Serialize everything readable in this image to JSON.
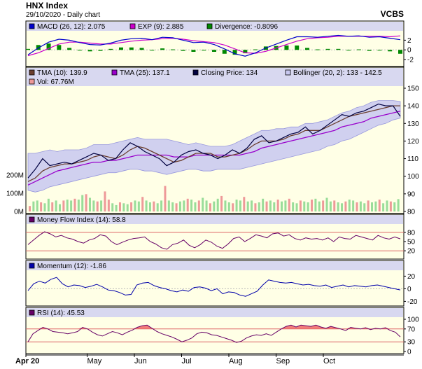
{
  "header": {
    "title": "HNX Index",
    "subtitle": "29/10/2020 - Daily chart",
    "brand": "VCBS"
  },
  "colors": {
    "panel_bg": "#FFFFE6",
    "legend_bg": "#D8D8F0",
    "macd": "#0000CC",
    "exp": "#CC00CC",
    "divergence": "#008800",
    "tma10": "#6B3E2E",
    "tma25": "#9900CC",
    "close": "#000040",
    "bollinger_fill": "#C8C8F0",
    "bollinger_line": "#9999DD",
    "vol_up": "#99DD99",
    "vol_down": "#EE9999",
    "mfi": "#660066",
    "momentum": "#0000AA",
    "rsi": "#660066",
    "rsi_fill": "#EE6666",
    "ref_line": "#DD6666"
  },
  "chart_data": [
    {
      "type": "line",
      "panel": "macd",
      "legend": [
        {
          "name": "MACD (26, 12): 2.075",
          "color": "#0000CC"
        },
        {
          "name": "EXP (9): 2.885",
          "color": "#CC00CC"
        },
        {
          "name": "Divergence: -0.8096",
          "color": "#008800"
        }
      ],
      "yticks": [
        "2",
        "0",
        "-2"
      ],
      "ylim": [
        -3,
        3.5
      ],
      "series": [
        {
          "name": "MACD (26, 12)",
          "values": [
            -1.0,
            0.4,
            1.6,
            2.2,
            2.0,
            1.5,
            1.1,
            1.0,
            1.4,
            2.0,
            2.3,
            2.4,
            2.1,
            2.6,
            2.5,
            2.0,
            1.5,
            1.6,
            1.1,
            0.2,
            -0.8,
            -1.3,
            -0.6,
            0.4,
            1.2,
            2.0,
            2.7,
            2.7,
            2.6,
            2.8,
            3.0,
            2.8,
            2.9,
            2.6,
            2.7,
            2.4,
            2.1
          ]
        },
        {
          "name": "EXP (9)",
          "values": [
            -1.2,
            -0.6,
            0.3,
            1.2,
            1.6,
            1.6,
            1.4,
            1.2,
            1.2,
            1.5,
            1.8,
            2.0,
            2.1,
            2.3,
            2.4,
            2.2,
            1.9,
            1.7,
            1.5,
            1.0,
            0.2,
            -0.6,
            -0.7,
            -0.3,
            0.4,
            1.1,
            1.8,
            2.3,
            2.5,
            2.6,
            2.8,
            2.8,
            2.8,
            2.8,
            2.8,
            2.7,
            2.9
          ]
        }
      ],
      "divergence": [
        0.2,
        1.0,
        1.3,
        1.0,
        0.4,
        -0.1,
        -0.3,
        -0.2,
        0.2,
        0.5,
        0.5,
        0.4,
        0.0,
        0.3,
        0.1,
        -0.2,
        -0.4,
        -0.1,
        -0.4,
        -0.8,
        -1.0,
        -0.7,
        0.1,
        0.7,
        0.8,
        0.9,
        0.9,
        0.4,
        0.1,
        0.2,
        0.2,
        0.0,
        0.1,
        -0.2,
        -0.1,
        -0.3,
        -0.8
      ]
    },
    {
      "type": "line",
      "panel": "price",
      "legend": [
        {
          "name": "TMA (10): 139.9",
          "color": "#6B3E2E"
        },
        {
          "name": "TMA (25): 137.1",
          "color": "#9900CC"
        },
        {
          "name": "Closing Price: 134",
          "color": "#000040"
        },
        {
          "name": "Bollinger (20, 2): 133 - 142.5",
          "color": "#C8C8F0"
        },
        {
          "name": "Vol: 67.76M",
          "color": "#EE9999"
        }
      ],
      "yticks": [
        "150",
        "140",
        "130",
        "120",
        "110",
        "100",
        "90",
        "80"
      ],
      "ylim": [
        80,
        150
      ],
      "vol_ticks": [
        "200M",
        "100M",
        "0M"
      ],
      "vol_max": 300,
      "series": [
        {
          "name": "Closing Price",
          "values": [
            99,
            104,
            110,
            106,
            107,
            108,
            107,
            109,
            111,
            113,
            112,
            109,
            110,
            115,
            119,
            117,
            114,
            112,
            110,
            106,
            108,
            112,
            114,
            115,
            113,
            112,
            110,
            112,
            115,
            113,
            116,
            121,
            123,
            119,
            120,
            122,
            124,
            125,
            128,
            124,
            126,
            129,
            132,
            135,
            134,
            136,
            137,
            139,
            141,
            140,
            140,
            134
          ]
        },
        {
          "name": "TMA (10)",
          "values": [
            97,
            99,
            103,
            105,
            106,
            107,
            107,
            108,
            109,
            111,
            112,
            111,
            110,
            112,
            115,
            117,
            116,
            114,
            112,
            110,
            108,
            109,
            111,
            113,
            113,
            113,
            111,
            111,
            112,
            113,
            115,
            118,
            120,
            120,
            120,
            121,
            123,
            124,
            126,
            126,
            126,
            128,
            130,
            132,
            134,
            135,
            136,
            137,
            138,
            139,
            140,
            140
          ]
        },
        {
          "name": "TMA (25)",
          "values": [
            95,
            97,
            99,
            101,
            103,
            104,
            105,
            106,
            107,
            108,
            108,
            109,
            109,
            110,
            111,
            112,
            112,
            112,
            112,
            112,
            111,
            111,
            111,
            112,
            112,
            112,
            112,
            112,
            112,
            112,
            113,
            114,
            116,
            117,
            118,
            119,
            120,
            121,
            122,
            123,
            124,
            125,
            126,
            128,
            129,
            130,
            131,
            133,
            134,
            135,
            136,
            137
          ]
        },
        {
          "name": "Bollinger upper",
          "values": [
            113,
            113,
            114,
            115,
            114,
            115,
            115,
            115,
            116,
            118,
            118,
            118,
            119,
            120,
            121,
            122,
            121,
            121,
            121,
            121,
            120,
            119,
            118,
            119,
            118,
            117,
            117,
            117,
            118,
            120,
            122,
            124,
            126,
            126,
            127,
            127,
            128,
            128,
            130,
            130,
            131,
            132,
            134,
            136,
            137,
            139,
            140,
            142,
            143,
            143,
            143,
            142.5
          ]
        },
        {
          "name": "Bollinger lower",
          "values": [
            92,
            91,
            92,
            94,
            95,
            96,
            97,
            98,
            99,
            100,
            101,
            102,
            102,
            103,
            104,
            104,
            103,
            103,
            102,
            101,
            102,
            103,
            104,
            104,
            103,
            103,
            104,
            104,
            104,
            104,
            105,
            106,
            107,
            108,
            109,
            110,
            111,
            112,
            113,
            114,
            115,
            117,
            118,
            120,
            121,
            123,
            125,
            127,
            129,
            130,
            132,
            133
          ]
        }
      ],
      "volume": [
        30,
        55,
        60,
        50,
        45,
        70,
        50,
        60,
        40,
        60,
        65,
        60,
        70,
        65,
        90,
        95,
        75,
        60,
        55,
        60,
        110,
        65,
        45,
        35,
        50,
        45,
        40,
        50,
        60,
        55,
        80,
        60,
        50,
        55,
        45,
        60,
        140,
        60,
        50,
        45,
        55,
        60,
        70,
        65,
        50,
        60,
        75,
        60,
        45,
        55,
        70,
        85,
        60,
        50,
        45,
        65,
        60,
        80,
        55,
        60,
        45,
        50,
        70,
        55,
        60,
        50,
        65,
        55,
        60,
        70,
        50,
        45,
        60,
        55,
        50,
        65,
        70,
        55,
        60,
        75,
        55,
        60,
        50,
        45,
        55,
        65,
        60,
        50,
        55,
        45,
        60,
        50,
        55,
        65,
        45,
        60,
        55,
        50,
        68
      ]
    },
    {
      "type": "line",
      "panel": "mfi",
      "legend": [
        {
          "name": "Money Flow Index (14): 58.8",
          "color": "#660066"
        }
      ],
      "yticks": [
        "80",
        "50",
        "20"
      ],
      "ylim": [
        0,
        100
      ],
      "ref_lines": [
        80,
        20
      ],
      "series": [
        {
          "name": "Money Flow Index (14)",
          "values": [
            40,
            55,
            70,
            82,
            75,
            65,
            70,
            62,
            58,
            50,
            45,
            55,
            60,
            72,
            68,
            50,
            40,
            48,
            55,
            60,
            62,
            65,
            50,
            42,
            30,
            25,
            40,
            45,
            55,
            38,
            30,
            40,
            55,
            48,
            35,
            28,
            42,
            60,
            65,
            50,
            60,
            72,
            68,
            62,
            75,
            78,
            68,
            72,
            60,
            55,
            62,
            58,
            60,
            55,
            62,
            50,
            65,
            60,
            58,
            70,
            65,
            60,
            55,
            70,
            62,
            58,
            65,
            58.8
          ]
        }
      ]
    },
    {
      "type": "line",
      "panel": "momentum",
      "legend": [
        {
          "name": "Momentum (12): -1.86",
          "color": "#0000AA"
        }
      ],
      "yticks": [
        "20",
        "0",
        "-20"
      ],
      "ylim": [
        -24,
        26
      ],
      "series": [
        {
          "name": "Momentum (12)",
          "values": [
            -3,
            8,
            12,
            9,
            15,
            18,
            8,
            3,
            6,
            5,
            2,
            4,
            7,
            3,
            -2,
            -3,
            -6,
            -10,
            -9,
            6,
            9,
            10,
            5,
            2,
            0,
            -3,
            -5,
            -2,
            -4,
            2,
            3,
            1,
            -3,
            0,
            -8,
            -5,
            -6,
            -10,
            -12,
            -8,
            -4,
            6,
            14,
            12,
            10,
            9,
            10,
            8,
            6,
            7,
            5,
            4,
            6,
            2,
            4,
            6,
            3,
            5,
            4,
            3,
            5,
            6,
            4,
            2,
            0,
            -1.86
          ]
        }
      ]
    },
    {
      "type": "area",
      "panel": "rsi",
      "legend": [
        {
          "name": "RSI (14): 45.53",
          "color": "#660066"
        }
      ],
      "yticks": [
        "100",
        "70",
        "30",
        "0"
      ],
      "ylim": [
        0,
        100
      ],
      "ref_lines": [
        70,
        30
      ],
      "series": [
        {
          "name": "RSI (14)",
          "values": [
            30,
            55,
            65,
            75,
            70,
            62,
            60,
            58,
            55,
            58,
            62,
            75,
            70,
            60,
            52,
            48,
            55,
            62,
            58,
            52,
            60,
            66,
            75,
            80,
            82,
            72,
            62,
            55,
            50,
            45,
            38,
            30,
            35,
            42,
            55,
            60,
            58,
            52,
            50,
            45,
            40,
            35,
            28,
            32,
            42,
            48,
            52,
            50,
            55,
            50,
            60,
            70,
            78,
            82,
            76,
            82,
            80,
            78,
            82,
            76,
            72,
            78,
            74,
            70,
            65,
            75,
            72,
            70,
            74,
            68,
            72,
            70,
            74,
            65,
            60,
            45.53
          ]
        }
      ]
    }
  ],
  "x_axis": {
    "labels": [
      "Apr 20",
      "May",
      "Jun",
      "Jul",
      "Aug",
      "Sep",
      "Oct"
    ],
    "positions": [
      0,
      0.125,
      0.25,
      0.375,
      0.5,
      0.625,
      0.75
    ]
  }
}
